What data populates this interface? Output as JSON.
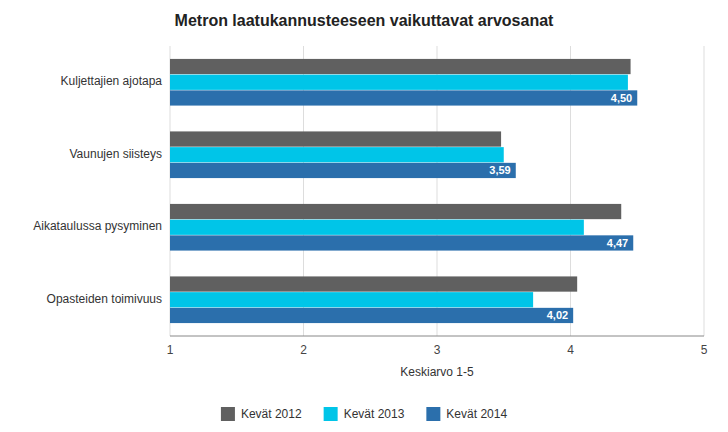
{
  "chart_data": {
    "type": "bar",
    "orientation": "horizontal",
    "title": "Metron laatukannusteeseen vaikuttavat arvosanat",
    "xlabel": "Keskiarvo 1-5",
    "categories": [
      "Kuljettajien ajotapa",
      "Vaunujen siisteys",
      "Aikataulussa pysyminen",
      "Opasteiden toimivuus"
    ],
    "series": [
      {
        "name": "Kevät 2012",
        "color": "#606060",
        "values": [
          4.45,
          3.48,
          4.38,
          4.05
        ]
      },
      {
        "name": "Kevät 2013",
        "color": "#00C5E8",
        "values": [
          4.43,
          3.5,
          4.1,
          3.72
        ]
      },
      {
        "name": "Kevät 2014",
        "color": "#2B6FAC",
        "values": [
          4.5,
          3.59,
          4.47,
          4.02
        ],
        "value_labels": [
          "4,50",
          "3,59",
          "4,47",
          "4,02"
        ]
      }
    ],
    "xlim": [
      1,
      5
    ],
    "xticks": [
      1,
      2,
      3,
      4,
      5
    ],
    "grid": true,
    "legend": "bottom",
    "data_labels": true
  }
}
